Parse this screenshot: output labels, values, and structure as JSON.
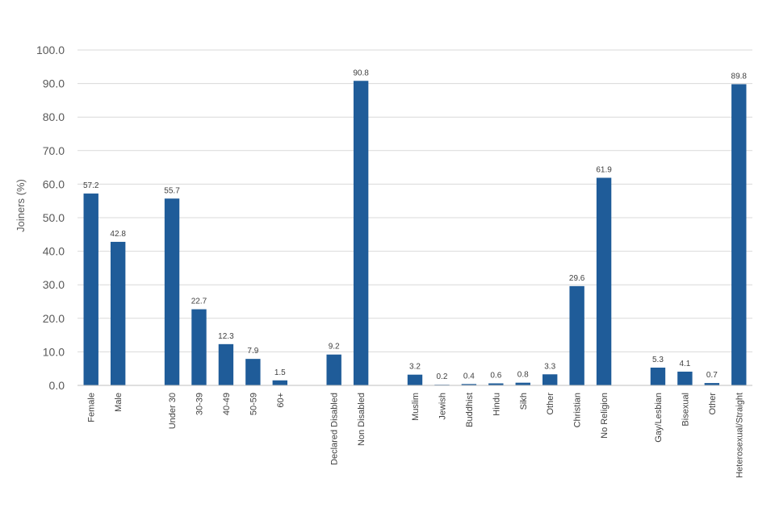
{
  "chart_data": {
    "type": "bar",
    "title": "",
    "xlabel": "",
    "ylabel": "Joiners (%)",
    "ylim": [
      0,
      100
    ],
    "yticks": [
      "0.0",
      "10.0",
      "20.0",
      "30.0",
      "40.0",
      "50.0",
      "60.0",
      "70.0",
      "80.0",
      "90.0",
      "100.0"
    ],
    "grid": true,
    "bar_color": "#1f5c99",
    "categories": [
      "Female",
      "Male",
      "Under 30",
      "30-39",
      "40-49",
      "50-59",
      "60+",
      "Declared Disabled",
      "Non Disabled",
      "Muslim",
      "Jewish",
      "Buddhist",
      "Hindu",
      "Sikh",
      "Other",
      "Christian",
      "No Religion",
      "Gay/Lesbian",
      "Bisexual",
      "Other",
      "Heterosexual/Straight"
    ],
    "values": [
      57.2,
      42.8,
      55.7,
      22.7,
      12.3,
      7.9,
      1.5,
      9.2,
      90.8,
      3.2,
      0.2,
      0.4,
      0.6,
      0.8,
      3.3,
      29.6,
      61.9,
      5.3,
      4.1,
      0.7,
      89.8
    ],
    "data_labels": [
      "57.2",
      "42.8",
      "55.7",
      "22.7",
      "12.3",
      "7.9",
      "1.5",
      "9.2",
      "90.8",
      "3.2",
      "0.2",
      "0.4",
      "0.6",
      "0.8",
      "3.3",
      "29.6",
      "61.9",
      "5.3",
      "4.1",
      "0.7",
      "89.8"
    ],
    "groups": [
      {
        "count": 2
      },
      {
        "count": 5
      },
      {
        "count": 2
      },
      {
        "count": 8
      },
      {
        "count": 4
      }
    ]
  }
}
